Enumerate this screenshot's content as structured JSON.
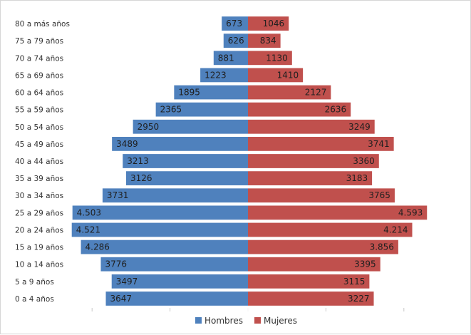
{
  "chart_data": {
    "type": "bar",
    "orientation": "horizontal",
    "style": "population-pyramid",
    "categories": [
      "0 a 4 años",
      "5 a 9 años",
      "10 a 14 años",
      "15 a 19 años",
      "20 a 24 años",
      "25 a 29 años",
      "30 a 34 años",
      "35 a 39 años",
      "40 a 44 años",
      "45 a 49 años",
      "50 a 54 años",
      "55 a 59 años",
      "60 a 64 años",
      "65 a 69 años",
      "70 a 74 años",
      "75 a 79 años",
      "80 a más años"
    ],
    "series": [
      {
        "name": "Hombres",
        "color": "#4f81bd",
        "values": [
          3647,
          3497,
          3776,
          4286,
          4521,
          4503,
          3731,
          3126,
          3213,
          3489,
          2950,
          2365,
          1895,
          1223,
          881,
          626,
          673
        ],
        "labels": [
          "3647",
          "3497",
          "3776",
          "4.286",
          "4.521",
          "4.503",
          "3731",
          "3126",
          "3213",
          "3489",
          "2950",
          "2365",
          "1895",
          "1223",
          "881",
          "626",
          "673"
        ]
      },
      {
        "name": "Mujeres",
        "color": "#c0504d",
        "values": [
          3227,
          3115,
          3395,
          3856,
          4214,
          4593,
          3765,
          3183,
          3360,
          3741,
          3249,
          2636,
          2127,
          1410,
          1130,
          834,
          1046
        ],
        "labels": [
          "3227",
          "3115",
          "3395",
          "3.856",
          "4.214",
          "4.593",
          "3765",
          "3183",
          "3360",
          "3741",
          "3249",
          "2636",
          "2127",
          "1410",
          "1130",
          "834",
          "1046"
        ]
      }
    ],
    "xlim": [
      -5500,
      5500
    ],
    "grid": false,
    "legend_position": "bottom",
    "title": "",
    "xlabel": "",
    "ylabel": ""
  }
}
